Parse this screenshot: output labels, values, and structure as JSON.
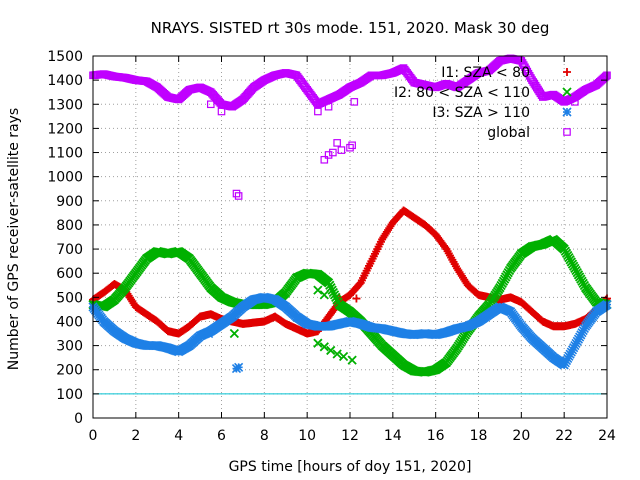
{
  "chart_data": {
    "type": "scatter",
    "title": "NRAYS. SISTED rt 30s mode. 151, 2020. Mask 30 deg",
    "xlabel": "GPS time [hours of doy 151, 2020]",
    "ylabel": "Number of GPS receiver-satellite rays",
    "xlim": [
      0,
      24
    ],
    "ylim": [
      0,
      1500
    ],
    "xticks": [
      "0",
      "2",
      "4",
      "6",
      "8",
      "10",
      "12",
      "14",
      "16",
      "18",
      "20",
      "22",
      "24"
    ],
    "yticks": [
      "0",
      "100",
      "200",
      "300",
      "400",
      "500",
      "600",
      "700",
      "800",
      "900",
      "1000",
      "1100",
      "1200",
      "1300",
      "1400",
      "1500"
    ],
    "grid": true,
    "legend_position": "top-right",
    "threshold_line": {
      "y": 100,
      "color": "#00c0d0"
    },
    "series": [
      {
        "name": "I1: SZA < 80",
        "marker": "+",
        "color": "#e00000",
        "points": [
          [
            0,
            490
          ],
          [
            0.5,
            520
          ],
          [
            1,
            555
          ],
          [
            1.5,
            530
          ],
          [
            2,
            460
          ],
          [
            2.5,
            430
          ],
          [
            3,
            400
          ],
          [
            3.5,
            360
          ],
          [
            4,
            350
          ],
          [
            4.5,
            380
          ],
          [
            5,
            420
          ],
          [
            5.5,
            430
          ],
          [
            6,
            410
          ],
          [
            6.5,
            400
          ],
          [
            7,
            390
          ],
          [
            7.5,
            395
          ],
          [
            8,
            400
          ],
          [
            8.5,
            420
          ],
          [
            9,
            390
          ],
          [
            9.5,
            370
          ],
          [
            10,
            350
          ],
          [
            10.5,
            360
          ],
          [
            11,
            420
          ],
          [
            11.5,
            480
          ],
          [
            12,
            510
          ],
          [
            12.5,
            560
          ],
          [
            13,
            650
          ],
          [
            13.5,
            740
          ],
          [
            14,
            810
          ],
          [
            14.5,
            860
          ],
          [
            15,
            830
          ],
          [
            15.5,
            800
          ],
          [
            16,
            760
          ],
          [
            16.5,
            700
          ],
          [
            17,
            620
          ],
          [
            17.5,
            550
          ],
          [
            18,
            510
          ],
          [
            18.5,
            500
          ],
          [
            19,
            490
          ],
          [
            19.5,
            500
          ],
          [
            20,
            480
          ],
          [
            20.5,
            440
          ],
          [
            21,
            400
          ],
          [
            21.5,
            380
          ],
          [
            22,
            380
          ],
          [
            22.5,
            390
          ],
          [
            23,
            410
          ],
          [
            23.5,
            450
          ],
          [
            24,
            495
          ]
        ],
        "outliers": [
          [
            11.5,
            500
          ],
          [
            12,
            510
          ],
          [
            12.3,
            495
          ]
        ]
      },
      {
        "name": "I2: 80 < SZA < 110",
        "marker": "x",
        "color": "#00b000",
        "points": [
          [
            0,
            470
          ],
          [
            0.5,
            460
          ],
          [
            1,
            490
          ],
          [
            1.5,
            540
          ],
          [
            2,
            600
          ],
          [
            2.5,
            660
          ],
          [
            3,
            690
          ],
          [
            3.5,
            680
          ],
          [
            4,
            690
          ],
          [
            4.5,
            660
          ],
          [
            5,
            600
          ],
          [
            5.5,
            540
          ],
          [
            6,
            500
          ],
          [
            6.5,
            480
          ],
          [
            7,
            470
          ],
          [
            7.5,
            470
          ],
          [
            8,
            470
          ],
          [
            8.5,
            480
          ],
          [
            9,
            520
          ],
          [
            9.5,
            580
          ],
          [
            10,
            600
          ],
          [
            10.5,
            595
          ],
          [
            11,
            560
          ],
          [
            11.5,
            470
          ],
          [
            12,
            440
          ],
          [
            12.5,
            400
          ],
          [
            13,
            350
          ],
          [
            13.5,
            300
          ],
          [
            14,
            260
          ],
          [
            14.5,
            220
          ],
          [
            15,
            195
          ],
          [
            15.5,
            190
          ],
          [
            16,
            200
          ],
          [
            16.5,
            230
          ],
          [
            17,
            290
          ],
          [
            17.5,
            360
          ],
          [
            18,
            420
          ],
          [
            18.5,
            470
          ],
          [
            19,
            540
          ],
          [
            19.5,
            620
          ],
          [
            20,
            680
          ],
          [
            20.5,
            710
          ],
          [
            21,
            720
          ],
          [
            21.5,
            740
          ],
          [
            22,
            700
          ],
          [
            22.5,
            620
          ],
          [
            23,
            540
          ],
          [
            23.5,
            480
          ],
          [
            24,
            470
          ]
        ],
        "outliers": [
          [
            6.6,
            350
          ],
          [
            10.5,
            530
          ],
          [
            10.8,
            510
          ],
          [
            10.5,
            310
          ],
          [
            10.8,
            295
          ],
          [
            11.1,
            280
          ],
          [
            11.4,
            265
          ],
          [
            11.7,
            255
          ],
          [
            12.1,
            240
          ]
        ]
      },
      {
        "name": "I3: SZA > 110",
        "marker": "*",
        "color": "#1e80e6",
        "points": [
          [
            0,
            460
          ],
          [
            0.5,
            400
          ],
          [
            1,
            360
          ],
          [
            1.5,
            330
          ],
          [
            2,
            310
          ],
          [
            2.5,
            300
          ],
          [
            3,
            300
          ],
          [
            3.5,
            290
          ],
          [
            4,
            275
          ],
          [
            4.5,
            300
          ],
          [
            5,
            340
          ],
          [
            5.5,
            360
          ],
          [
            6,
            390
          ],
          [
            6.5,
            420
          ],
          [
            7,
            460
          ],
          [
            7.5,
            490
          ],
          [
            8,
            500
          ],
          [
            8.5,
            490
          ],
          [
            9,
            460
          ],
          [
            9.5,
            420
          ],
          [
            10,
            390
          ],
          [
            10.5,
            380
          ],
          [
            11,
            380
          ],
          [
            11.5,
            390
          ],
          [
            12,
            400
          ],
          [
            12.5,
            390
          ],
          [
            13,
            375
          ],
          [
            13.5,
            370
          ],
          [
            14,
            360
          ],
          [
            14.5,
            350
          ],
          [
            15,
            345
          ],
          [
            15.5,
            350
          ],
          [
            16,
            345
          ],
          [
            16.5,
            355
          ],
          [
            17,
            370
          ],
          [
            17.5,
            380
          ],
          [
            18,
            400
          ],
          [
            18.5,
            430
          ],
          [
            19,
            460
          ],
          [
            19.5,
            440
          ],
          [
            20,
            380
          ],
          [
            20.5,
            330
          ],
          [
            21,
            290
          ],
          [
            21.5,
            250
          ],
          [
            22,
            220
          ],
          [
            22.5,
            300
          ],
          [
            23,
            380
          ],
          [
            23.5,
            440
          ],
          [
            24,
            470
          ]
        ],
        "outliers": [
          [
            5.4,
            350
          ],
          [
            6.7,
            205
          ],
          [
            6.8,
            210
          ]
        ]
      },
      {
        "name": "global",
        "marker": "square",
        "color": "#c000ff",
        "points": [
          [
            0,
            1420
          ],
          [
            0.5,
            1425
          ],
          [
            1,
            1415
          ],
          [
            1.5,
            1410
          ],
          [
            2,
            1400
          ],
          [
            2.5,
            1395
          ],
          [
            3,
            1370
          ],
          [
            3.5,
            1330
          ],
          [
            4,
            1320
          ],
          [
            4.5,
            1360
          ],
          [
            5,
            1370
          ],
          [
            5.5,
            1350
          ],
          [
            6,
            1300
          ],
          [
            6.5,
            1290
          ],
          [
            7,
            1320
          ],
          [
            7.5,
            1370
          ],
          [
            8,
            1400
          ],
          [
            8.5,
            1420
          ],
          [
            9,
            1430
          ],
          [
            9.5,
            1420
          ],
          [
            10,
            1360
          ],
          [
            10.5,
            1300
          ],
          [
            11,
            1320
          ],
          [
            11.5,
            1340
          ],
          [
            12,
            1370
          ],
          [
            12.5,
            1390
          ],
          [
            13,
            1420
          ],
          [
            13.5,
            1420
          ],
          [
            14,
            1430
          ],
          [
            14.5,
            1450
          ],
          [
            15,
            1390
          ],
          [
            15.5,
            1380
          ],
          [
            16,
            1370
          ],
          [
            16.5,
            1385
          ],
          [
            17,
            1370
          ],
          [
            17.5,
            1400
          ],
          [
            18,
            1430
          ],
          [
            18.5,
            1440
          ],
          [
            19,
            1480
          ],
          [
            19.5,
            1490
          ],
          [
            20,
            1480
          ],
          [
            20.5,
            1400
          ],
          [
            21,
            1330
          ],
          [
            21.5,
            1340
          ],
          [
            22,
            1310
          ],
          [
            22.5,
            1330
          ],
          [
            23,
            1360
          ],
          [
            23.5,
            1380
          ],
          [
            24,
            1420
          ]
        ],
        "outliers": [
          [
            5.5,
            1300
          ],
          [
            6,
            1270
          ],
          [
            6.7,
            930
          ],
          [
            6.8,
            920
          ],
          [
            10.5,
            1270
          ],
          [
            11,
            1290
          ],
          [
            10.8,
            1070
          ],
          [
            11,
            1090
          ],
          [
            11.2,
            1100
          ],
          [
            11.6,
            1110
          ],
          [
            12,
            1120
          ],
          [
            12.1,
            1130
          ],
          [
            11.4,
            1140
          ],
          [
            12.2,
            1310
          ],
          [
            22.5,
            1310
          ]
        ]
      }
    ]
  }
}
